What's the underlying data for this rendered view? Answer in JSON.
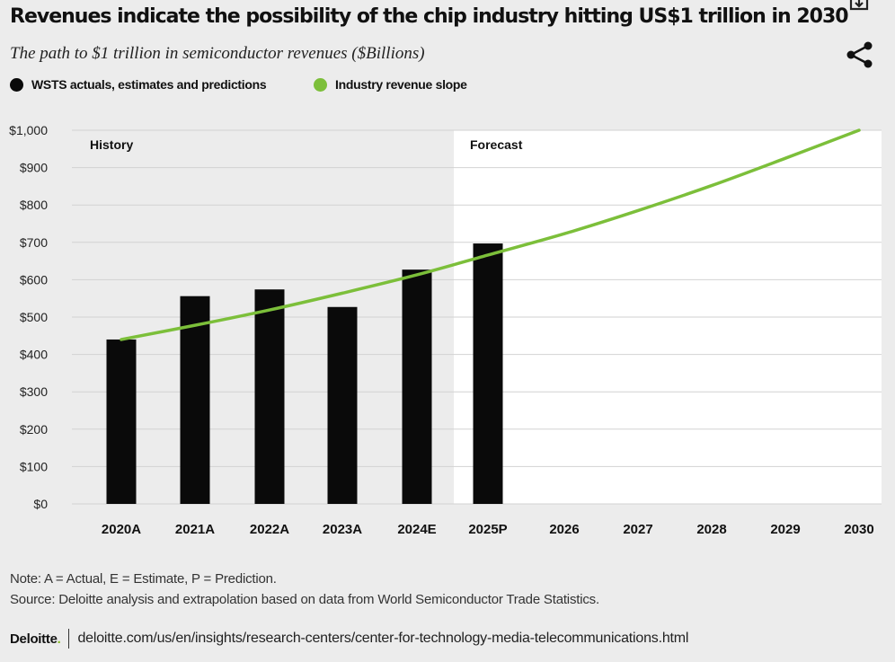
{
  "title": "Revenues indicate the possibility of the chip industry hitting US$1 trillion in 2030",
  "subtitle": "The path to $1 trillion in semiconductor revenues ($Billions)",
  "legend": [
    {
      "label": "WSTS actuals, estimates and predictions",
      "color": "#0a0a0a"
    },
    {
      "label": "Industry revenue slope",
      "color": "#7cbf3a"
    }
  ],
  "icons": {
    "download": "download-icon",
    "share": "share-icon"
  },
  "chart_data": {
    "type": "bar",
    "categories": [
      "2020A",
      "2021A",
      "2022A",
      "2023A",
      "2024E",
      "2025P",
      "2026",
      "2027",
      "2028",
      "2029",
      "2030"
    ],
    "series": [
      {
        "name": "WSTS actuals, estimates and predictions",
        "type": "bar",
        "color": "#0a0a0a",
        "values": [
          440,
          556,
          574,
          527,
          627,
          697,
          null,
          null,
          null,
          null,
          null
        ]
      },
      {
        "name": "Industry revenue slope",
        "type": "line",
        "color": "#7cbf3a",
        "values": [
          440,
          478,
          519,
          564,
          613,
          666,
          723,
          785,
          852,
          925,
          1000
        ]
      }
    ],
    "ylim": [
      0,
      1000
    ],
    "yticks": [
      0,
      100,
      200,
      300,
      400,
      500,
      600,
      700,
      800,
      900,
      1000
    ],
    "ytick_labels": [
      "$0",
      "$100",
      "$200",
      "$300",
      "$400",
      "$500",
      "$600",
      "$700",
      "$800",
      "$900",
      "$1,000"
    ],
    "regions": [
      {
        "label": "History",
        "from": "2020A",
        "to": "2024E"
      },
      {
        "label": "Forecast",
        "from": "2025P",
        "to": "2030"
      }
    ],
    "grid": true
  },
  "notes": {
    "note": "Note: A = Actual, E = Estimate, P = Prediction.",
    "source": "Source: Deloitte analysis and extrapolation based on data from World Semiconductor Trade Statistics."
  },
  "footer": {
    "brand": "Deloitte",
    "brand_dot": ".",
    "url": "deloitte.com/us/en/insights/research-centers/center-for-technology-media-telecommunications.html"
  }
}
